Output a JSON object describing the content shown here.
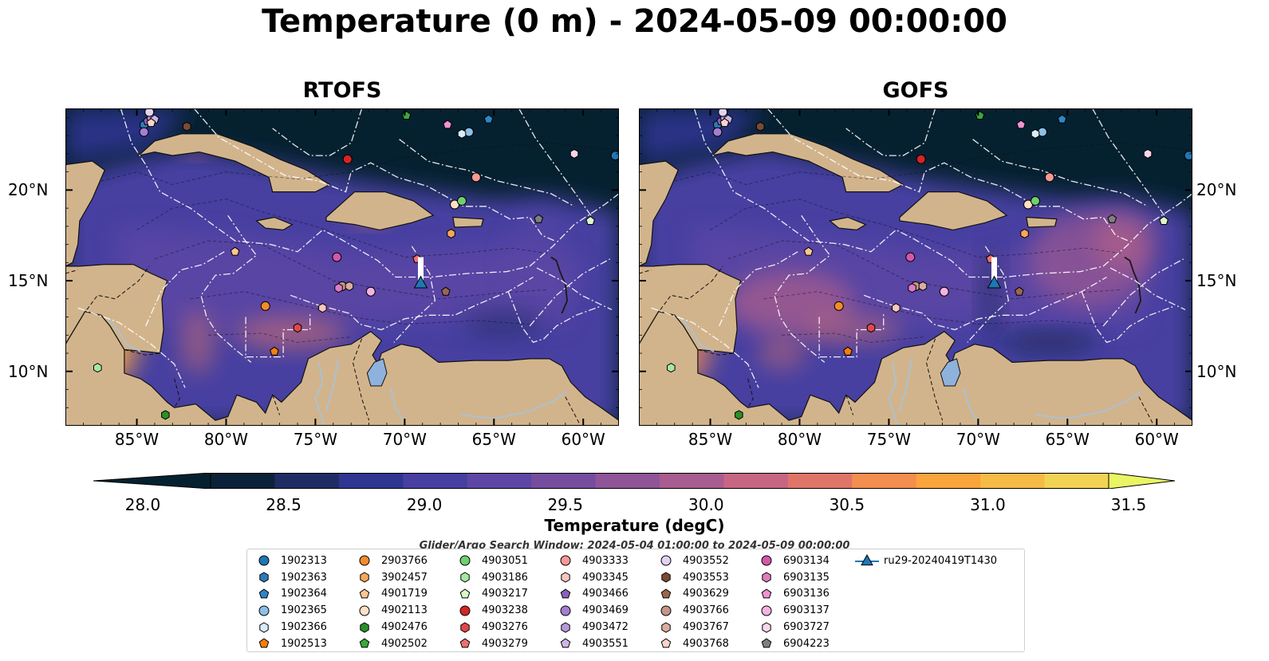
{
  "title": "Temperature (0 m) - 2024-05-09 00:00:00",
  "panels": [
    {
      "title": "RTOFS"
    },
    {
      "title": "GOFS"
    }
  ],
  "map": {
    "lon_range": [
      -89,
      -58
    ],
    "lat_range": [
      7,
      24.5
    ],
    "lat_ticks": [
      "20°N",
      "15°N",
      "10°N"
    ],
    "lat_tick_values": [
      20,
      15,
      10
    ],
    "lon_ticks": [
      "85°W",
      "80°W",
      "75°W",
      "70°W",
      "65°W",
      "60°W"
    ],
    "lon_tick_values": [
      -85,
      -80,
      -75,
      -70,
      -65,
      -60
    ],
    "land_color": "#d2b48c",
    "ocean_cold_color": "#05212f",
    "boundary_color": "#ffffff",
    "river_color": "#a3c4e0"
  },
  "colorbar": {
    "label": "Temperature (degC)",
    "ticks": [
      "28.0",
      "28.5",
      "29.0",
      "29.5",
      "30.0",
      "30.5",
      "31.0",
      "31.5"
    ],
    "colors": [
      "#0b2238",
      "#1f2c63",
      "#2f3591",
      "#473fa1",
      "#5d46a5",
      "#764c9f",
      "#8f5597",
      "#a85c8f",
      "#c66683",
      "#df7569",
      "#f48e4e",
      "#f9a43d",
      "#f6bb45",
      "#f2d254",
      "#e9f564"
    ]
  },
  "search_window": "Glider/Argo Search Window: 2024-05-04 01:00:00 to 2024-05-09 00:00:00",
  "legend": [
    {
      "label": "1902313",
      "color": "#1f77b4",
      "shape": "circle"
    },
    {
      "label": "1902363",
      "color": "#2b7bba",
      "shape": "hexagon"
    },
    {
      "label": "1902364",
      "color": "#2d86c8",
      "shape": "pentagon"
    },
    {
      "label": "1902365",
      "color": "#8ebfe8",
      "shape": "circle"
    },
    {
      "label": "1902366",
      "color": "#d8ecfa",
      "shape": "hexagon"
    },
    {
      "label": "1902513",
      "color": "#f57f0e",
      "shape": "pentagon"
    },
    {
      "label": "2903766",
      "color": "#f28c2b",
      "shape": "circle"
    },
    {
      "label": "3902457",
      "color": "#f7a65b",
      "shape": "hexagon"
    },
    {
      "label": "4901719",
      "color": "#fcc691",
      "shape": "pentagon"
    },
    {
      "label": "4902113",
      "color": "#fde0c5",
      "shape": "circle"
    },
    {
      "label": "4902476",
      "color": "#2a8f2a",
      "shape": "hexagon"
    },
    {
      "label": "4902502",
      "color": "#3aa83a",
      "shape": "pentagon"
    },
    {
      "label": "4903051",
      "color": "#6fd06f",
      "shape": "circle"
    },
    {
      "label": "4903186",
      "color": "#a5e8a5",
      "shape": "hexagon"
    },
    {
      "label": "4903217",
      "color": "#dbf7c8",
      "shape": "pentagon"
    },
    {
      "label": "4903238",
      "color": "#d42424",
      "shape": "circle"
    },
    {
      "label": "4903276",
      "color": "#e04848",
      "shape": "hexagon"
    },
    {
      "label": "4903279",
      "color": "#f07070",
      "shape": "pentagon"
    },
    {
      "label": "4903333",
      "color": "#f59a94",
      "shape": "circle"
    },
    {
      "label": "4903345",
      "color": "#fbc5c0",
      "shape": "hexagon"
    },
    {
      "label": "4903466",
      "color": "#8a62b8",
      "shape": "pentagon"
    },
    {
      "label": "4903469",
      "color": "#a47ed0",
      "shape": "circle"
    },
    {
      "label": "4903472",
      "color": "#b699d8",
      "shape": "hexagon"
    },
    {
      "label": "4903551",
      "color": "#cdb6e6",
      "shape": "pentagon"
    },
    {
      "label": "4903552",
      "color": "#e2d3f1",
      "shape": "circle"
    },
    {
      "label": "4903553",
      "color": "#7b4a34",
      "shape": "hexagon"
    },
    {
      "label": "4903629",
      "color": "#9a6650",
      "shape": "pentagon"
    },
    {
      "label": "4903766",
      "color": "#c49488",
      "shape": "circle"
    },
    {
      "label": "4903767",
      "color": "#d9aca0",
      "shape": "hexagon"
    },
    {
      "label": "4903768",
      "color": "#f8d4cc",
      "shape": "pentagon"
    },
    {
      "label": "6903134",
      "color": "#d258aa",
      "shape": "circle"
    },
    {
      "label": "6903135",
      "color": "#e07cc0",
      "shape": "hexagon"
    },
    {
      "label": "6903136",
      "color": "#ef94d2",
      "shape": "pentagon"
    },
    {
      "label": "6903137",
      "color": "#f4b3e0",
      "shape": "circle"
    },
    {
      "label": "6903727",
      "color": "#fad5ee",
      "shape": "hexagon"
    },
    {
      "label": "6904223",
      "color": "#7f7f7f",
      "shape": "pentagon"
    },
    {
      "label": "ru29-20240419T1430",
      "color": "#1f77b4",
      "shape": "triangle-line"
    }
  ],
  "floats": [
    {
      "id": "1902313",
      "lon": -58.2,
      "lat": 21.9
    },
    {
      "id": "1902363",
      "lon": -84.6,
      "lat": 23.6
    },
    {
      "id": "1902364",
      "lon": -65.3,
      "lat": 23.9
    },
    {
      "id": "1902365",
      "lon": -66.4,
      "lat": 23.2
    },
    {
      "id": "1902366",
      "lon": -66.8,
      "lat": 23.1
    },
    {
      "id": "1902513",
      "lon": -77.3,
      "lat": 11.1
    },
    {
      "id": "2903766",
      "lon": -77.8,
      "lat": 13.6
    },
    {
      "id": "3902457",
      "lon": -67.4,
      "lat": 17.6
    },
    {
      "id": "4901719",
      "lon": -79.5,
      "lat": 16.6
    },
    {
      "id": "4902113",
      "lon": -67.2,
      "lat": 19.2
    },
    {
      "id": "4902476",
      "lon": -83.4,
      "lat": 7.6
    },
    {
      "id": "4902502",
      "lon": -69.9,
      "lat": 24.1
    },
    {
      "id": "4903051",
      "lon": -66.8,
      "lat": 19.4
    },
    {
      "id": "4903186",
      "lon": -87.2,
      "lat": 10.2
    },
    {
      "id": "4903217",
      "lon": -59.6,
      "lat": 18.3
    },
    {
      "id": "4903238",
      "lon": -73.2,
      "lat": 21.7
    },
    {
      "id": "4903276",
      "lon": -76.0,
      "lat": 12.4
    },
    {
      "id": "4903279",
      "lon": -69.3,
      "lat": 16.2
    },
    {
      "id": "4903333",
      "lon": -66.0,
      "lat": 20.7
    },
    {
      "id": "4903345",
      "lon": -74.6,
      "lat": 13.5
    },
    {
      "id": "4903466",
      "lon": -84.4,
      "lat": 23.8
    },
    {
      "id": "4903469",
      "lon": -84.6,
      "lat": 23.2
    },
    {
      "id": "4903472",
      "lon": -84.2,
      "lat": 24.0
    },
    {
      "id": "4903551",
      "lon": -84.0,
      "lat": 23.9
    },
    {
      "id": "4903552",
      "lon": -84.3,
      "lat": 24.3
    },
    {
      "id": "4903553",
      "lon": -82.2,
      "lat": 23.5
    },
    {
      "id": "4903629",
      "lon": -67.7,
      "lat": 14.4
    },
    {
      "id": "4903766",
      "lon": -73.5,
      "lat": 14.7
    },
    {
      "id": "4903767",
      "lon": -73.1,
      "lat": 14.7
    },
    {
      "id": "4903768",
      "lon": -84.2,
      "lat": 23.7
    },
    {
      "id": "6903134",
      "lon": -73.8,
      "lat": 16.3
    },
    {
      "id": "6903135",
      "lon": -73.7,
      "lat": 14.6
    },
    {
      "id": "6903136",
      "lon": -67.6,
      "lat": 23.6
    },
    {
      "id": "6903137",
      "lon": -71.9,
      "lat": 14.4
    },
    {
      "id": "6903727",
      "lon": -60.5,
      "lat": 22.0
    },
    {
      "id": "6904223",
      "lon": -62.5,
      "lat": 18.4
    }
  ],
  "glider": {
    "id": "ru29-20240419T1430",
    "lon": -69.1,
    "lat": 14.8,
    "track_top": 16.3
  }
}
